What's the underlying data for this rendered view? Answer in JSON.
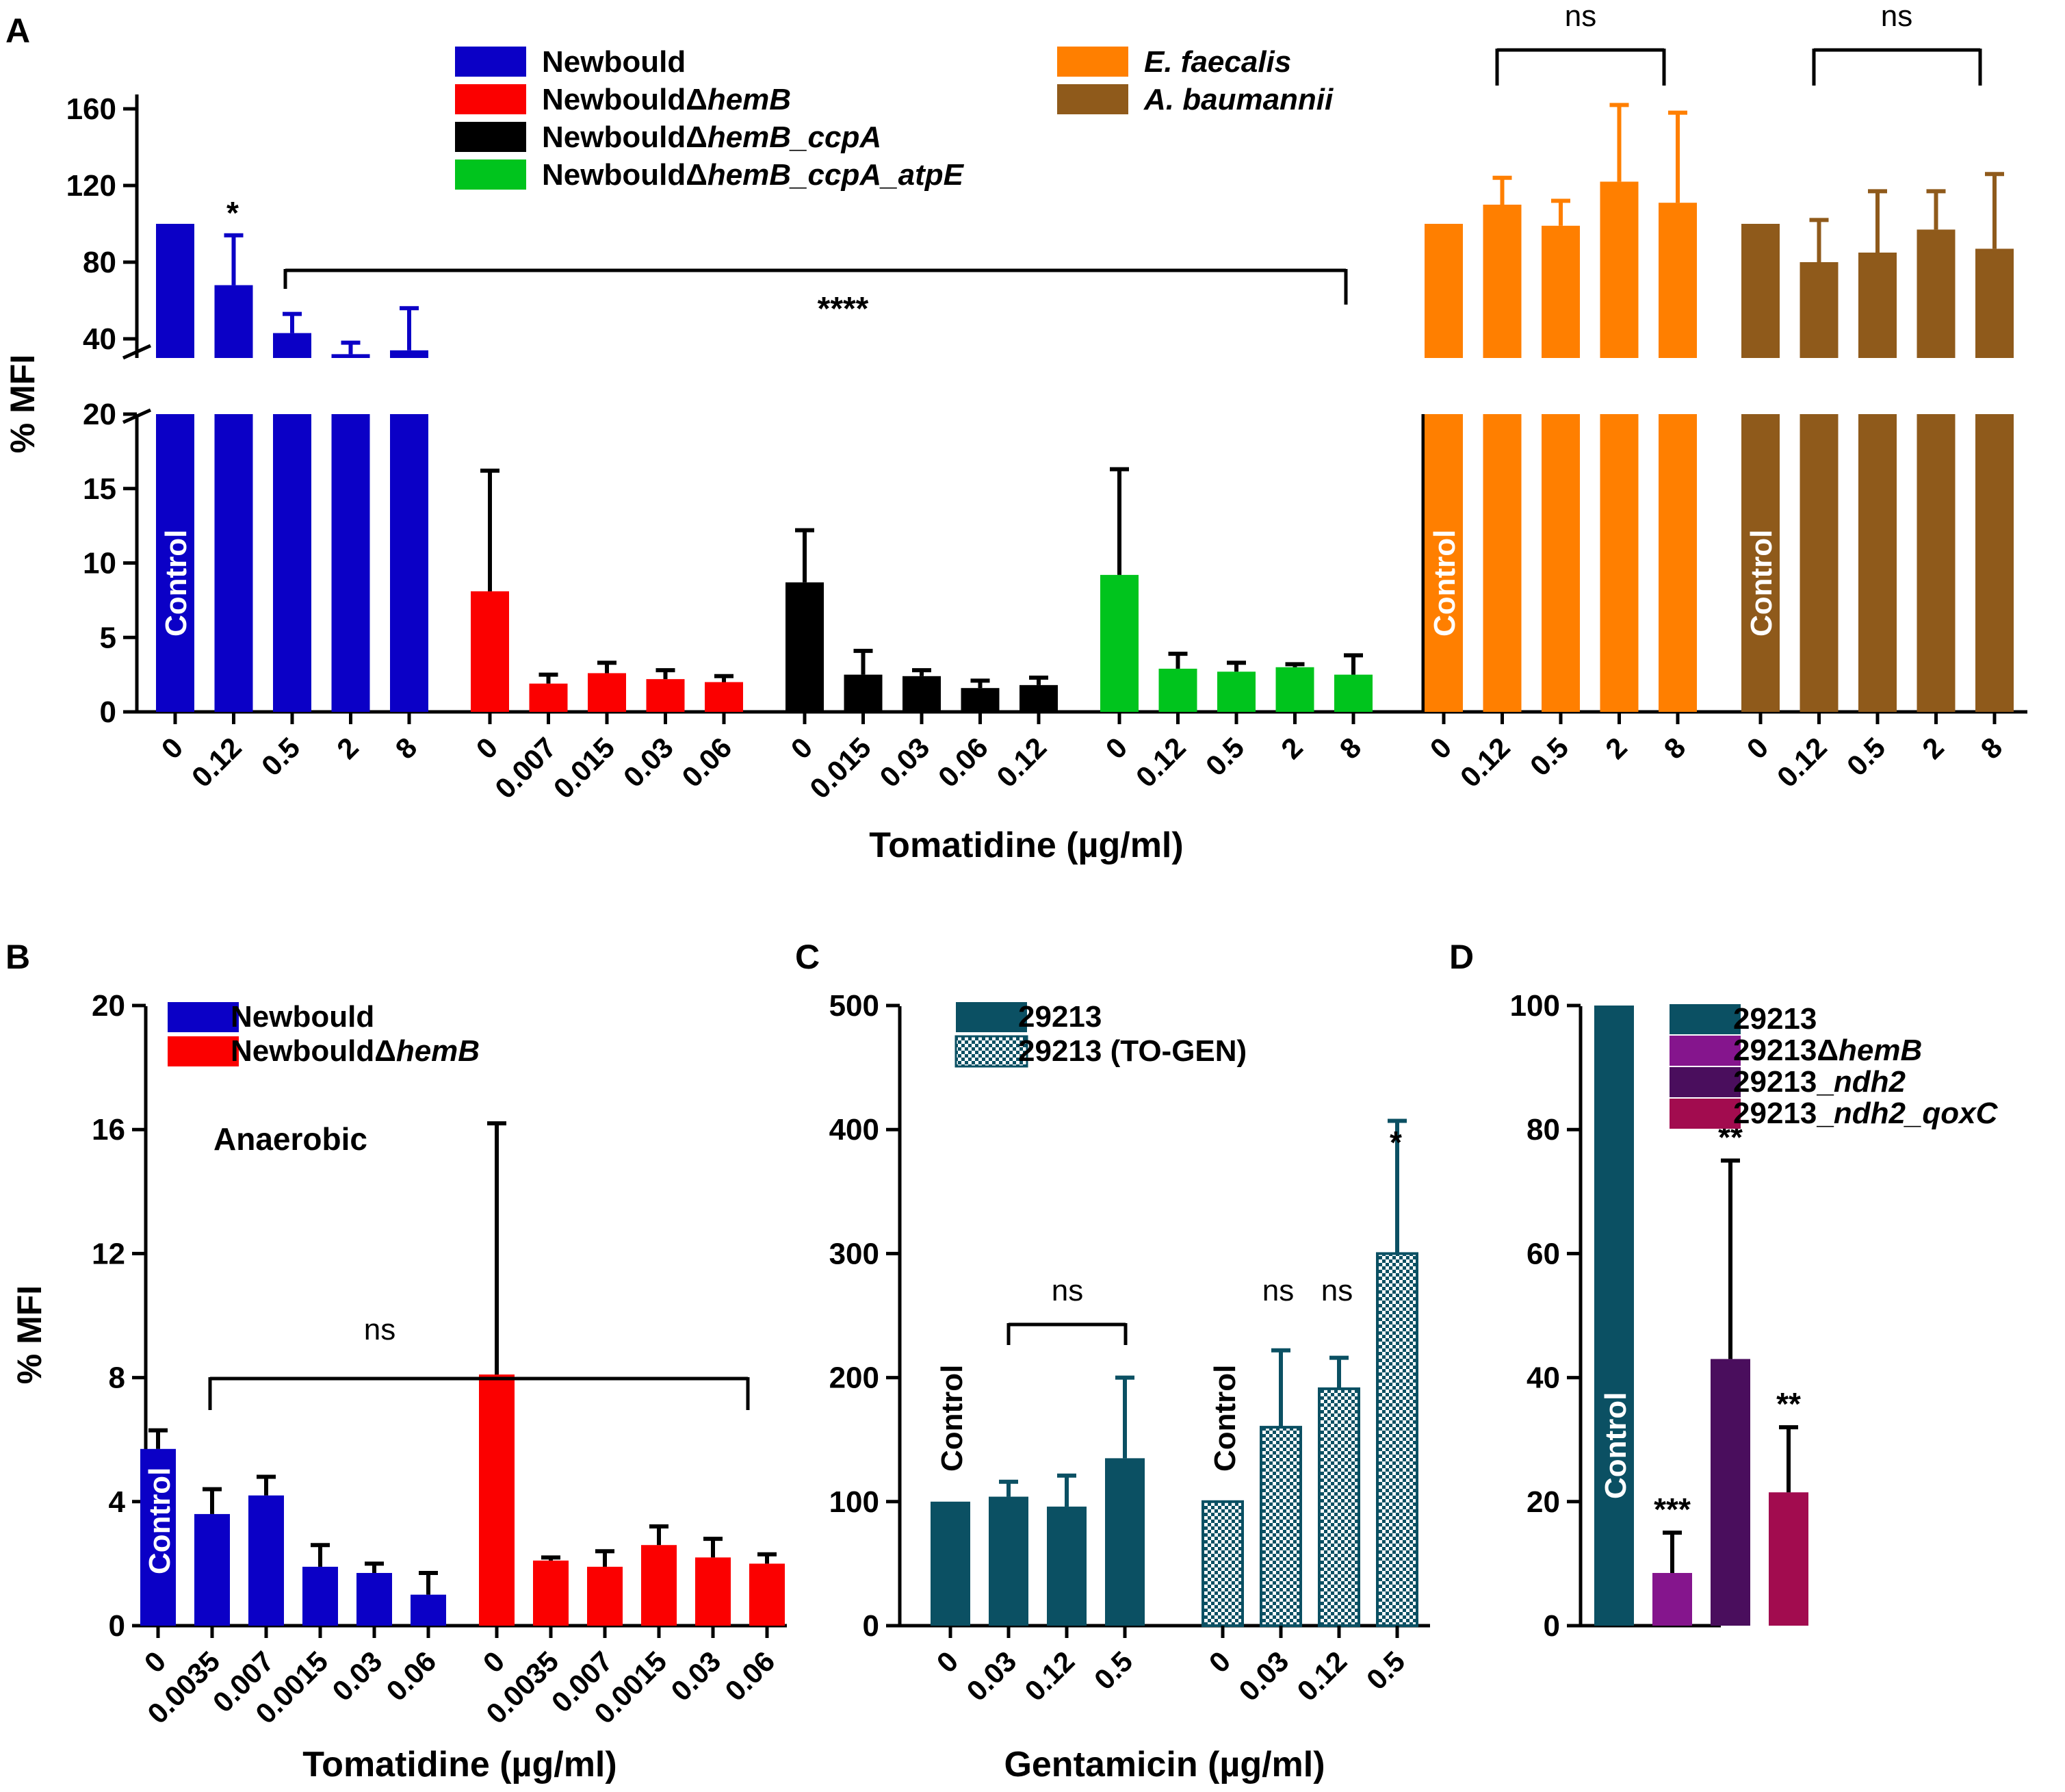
{
  "colors": {
    "newbould": "#0b00c6",
    "hemB": "#fb0000",
    "hemB_ccpA": "#000000",
    "atpE": "#00c41d",
    "efaecalis": "#ff7f00",
    "abaumannii": "#8f5a1b",
    "s29213": "#0b5063",
    "s29213_hemB": "#85158d",
    "s29213_ndh2": "#4a0e5d",
    "s29213_qoxC": "#a20c4f"
  },
  "panels": {
    "A": "A",
    "B": "B",
    "C": "C",
    "D": "D"
  },
  "control_label": "Control",
  "chart_data": [
    {
      "id": "A",
      "type": "bar",
      "ylabel": "% MFI",
      "xlabel": "Tomatidine (µg/ml)",
      "ylim_lower": [
        0,
        20
      ],
      "ylim_upper": [
        30,
        165
      ],
      "yticks_lower": [
        "0",
        "5",
        "10",
        "15",
        "20"
      ],
      "yticks_upper": [
        "40",
        "80",
        "120",
        "160"
      ],
      "legend": [
        {
          "name": "Newbould",
          "color": "newbould"
        },
        {
          "name": "NewbouldΔ",
          "em": "hemB",
          "color": "hemB"
        },
        {
          "name": "NewbouldΔ",
          "em": "hemB_ccpA",
          "color": "hemB_ccpA"
        },
        {
          "name": "NewbouldΔ",
          "em": "hemB_ccpA_atpE",
          "color": "atpE"
        },
        {
          "name": "",
          "em": "E. faecalis",
          "color": "efaecalis"
        },
        {
          "name": "",
          "em": "A. baumannii",
          "color": "abaumannii"
        }
      ],
      "series": [
        {
          "name": "Newbould",
          "color": "newbould",
          "x": [
            "0",
            "0.12",
            "0.5",
            "2",
            "8"
          ],
          "values": [
            100,
            68,
            43,
            32,
            34
          ],
          "errors": [
            0,
            26,
            10,
            6,
            22
          ]
        },
        {
          "name": "NewbouldΔhemB",
          "color": "hemB",
          "x": [
            "0",
            "0.007",
            "0.015",
            "0.03",
            "0.06"
          ],
          "values": [
            8.1,
            1.9,
            2.6,
            2.2,
            2.0
          ],
          "errors": [
            8.1,
            0.6,
            0.7,
            0.6,
            0.4
          ]
        },
        {
          "name": "NewbouldΔhemB_ccpA",
          "color": "hemB_ccpA",
          "x": [
            "0",
            "0.015",
            "0.03",
            "0.06",
            "0.12"
          ],
          "values": [
            8.7,
            2.5,
            2.4,
            1.6,
            1.8
          ],
          "errors": [
            3.5,
            1.6,
            0.4,
            0.5,
            0.5
          ]
        },
        {
          "name": "NewbouldΔhemB_ccpA_atpE",
          "color": "atpE",
          "x": [
            "0",
            "0.12",
            "0.5",
            "2",
            "8"
          ],
          "values": [
            9.2,
            2.9,
            2.7,
            3.0,
            2.5
          ],
          "errors": [
            7.1,
            1.0,
            0.6,
            0.2,
            1.3
          ]
        },
        {
          "name": "E. faecalis",
          "color": "efaecalis",
          "x": [
            "0",
            "0.12",
            "0.5",
            "2",
            "8"
          ],
          "values": [
            100,
            110,
            99,
            122,
            111
          ],
          "errors": [
            0,
            14,
            13,
            40,
            47
          ]
        },
        {
          "name": "A. baumannii",
          "color": "abaumannii",
          "x": [
            "0",
            "0.12",
            "0.5",
            "2",
            "8"
          ],
          "values": [
            100,
            80,
            85,
            97,
            87
          ],
          "errors": [
            0,
            22,
            32,
            20,
            39
          ]
        }
      ],
      "annotations": {
        "star_single": "*",
        "star_quad": "****",
        "ns1": "ns",
        "ns2": "ns"
      }
    },
    {
      "id": "B",
      "type": "bar",
      "ylabel": "% MFI",
      "xlabel": "Tomatidine (µg/ml)",
      "ylim": [
        0,
        20
      ],
      "yticks": [
        "0",
        "4",
        "8",
        "12",
        "16",
        "20"
      ],
      "note": "Anaerobic",
      "ns": "ns",
      "legend": [
        {
          "name": "Newbould",
          "color": "newbould"
        },
        {
          "name": "NewbouldΔ",
          "em": "hemB",
          "color": "hemB"
        }
      ],
      "series": [
        {
          "name": "Newbould",
          "color": "newbould",
          "x": [
            "0",
            "0.0035",
            "0.007",
            "0.0015",
            "0.03",
            "0.06"
          ],
          "values": [
            5.7,
            3.6,
            4.2,
            1.9,
            1.7,
            1.0
          ],
          "errors": [
            0.6,
            0.8,
            0.6,
            0.7,
            0.3,
            0.7
          ]
        },
        {
          "name": "NewbouldΔhemB",
          "color": "hemB",
          "x": [
            "0",
            "0.0035",
            "0.007",
            "0.0015",
            "0.03",
            "0.06"
          ],
          "values": [
            8.1,
            2.1,
            1.9,
            2.6,
            2.2,
            2.0
          ],
          "errors": [
            8.1,
            0.1,
            0.5,
            0.6,
            0.6,
            0.3
          ]
        }
      ]
    },
    {
      "id": "C",
      "type": "bar",
      "xlabel": "Gentamicin (µg/ml)",
      "ylim": [
        0,
        500
      ],
      "yticks": [
        "0",
        "100",
        "200",
        "300",
        "400",
        "500"
      ],
      "legend": [
        {
          "name": "29213",
          "color": "s29213"
        },
        {
          "name": "29213 (TO-GEN)",
          "color": "s29213",
          "pattern": true
        }
      ],
      "series": [
        {
          "name": "29213",
          "color": "s29213",
          "x": [
            "0",
            "0.03",
            "0.12",
            "0.5"
          ],
          "values": [
            100,
            104,
            96,
            135
          ],
          "errors": [
            0,
            12,
            25,
            65
          ]
        },
        {
          "name": "29213 (TO-GEN)",
          "color": "s29213",
          "pattern": true,
          "x": [
            "0",
            "0.03",
            "0.12",
            "0.5"
          ],
          "values": [
            100,
            160,
            191,
            300
          ],
          "errors": [
            0,
            62,
            25,
            107
          ]
        }
      ],
      "annotations": {
        "ns_bracket": "ns",
        "ns_a": "ns",
        "ns_b": "ns",
        "star": "*"
      }
    },
    {
      "id": "D",
      "type": "bar",
      "ylim": [
        0,
        100
      ],
      "yticks": [
        "0",
        "20",
        "40",
        "60",
        "80",
        "100"
      ],
      "legend": [
        {
          "name": "29213",
          "color": "s29213"
        },
        {
          "name": "29213Δ",
          "em": "hemB",
          "color": "s29213_hemB"
        },
        {
          "name": "29213_",
          "em": "ndh2",
          "color": "s29213_ndh2"
        },
        {
          "name": "29213_",
          "em": "ndh2_qoxC",
          "color": "s29213_qoxC"
        }
      ],
      "series": [
        {
          "name": "strains",
          "x": [
            "29213",
            "29213ΔhemB",
            "29213_ndh2",
            "29213_ndh2_qoxC"
          ],
          "colors": [
            "s29213",
            "s29213_hemB",
            "s29213_ndh2",
            "s29213_qoxC"
          ],
          "values": [
            100,
            8.5,
            43,
            21.5
          ],
          "errors": [
            0,
            6.5,
            32,
            10.5
          ],
          "stars": [
            "",
            "***",
            "**",
            "**"
          ]
        }
      ]
    }
  ]
}
